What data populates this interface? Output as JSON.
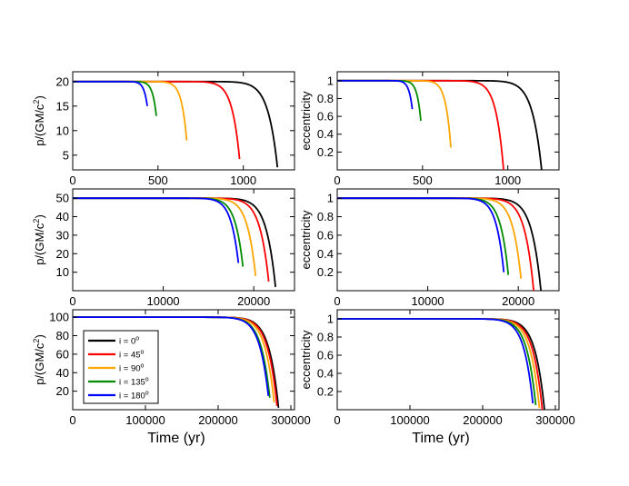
{
  "legend": {
    "placement": "inside-left of bottom-left panel",
    "entries": [
      {
        "label_prefix": "i = ",
        "label_value": "0",
        "label_sup": "o",
        "color": "#000000"
      },
      {
        "label_prefix": "i = ",
        "label_value": "45",
        "label_sup": "o",
        "color": "#ff0000"
      },
      {
        "label_prefix": "i = ",
        "label_value": "90",
        "label_sup": "o",
        "color": "#ffa500"
      },
      {
        "label_prefix": "i = ",
        "label_value": "135",
        "label_sup": "o",
        "color": "#008b00"
      },
      {
        "label_prefix": "i = ",
        "label_value": "180",
        "label_sup": "o",
        "color": "#0000ff"
      }
    ]
  },
  "chart_data": [
    {
      "type": "line",
      "panel": "row1-left",
      "ylabel_main": "p/(GM/c",
      "ylabel_sup": "2",
      "ylabel_end": ")",
      "xlabel": "",
      "xlim": [
        0,
        1300
      ],
      "ylim": [
        2,
        22
      ],
      "xticks": [
        0,
        500,
        1000
      ],
      "yticks": [
        5,
        10,
        15,
        20
      ],
      "series": [
        {
          "name": "i = 0°",
          "color": "#000000",
          "start": 20,
          "end_x": 1200,
          "end_y": 2.5
        },
        {
          "name": "i = 45°",
          "color": "#ff0000",
          "start": 20,
          "end_x": 978,
          "end_y": 4.2
        },
        {
          "name": "i = 90°",
          "color": "#ffa500",
          "start": 20,
          "end_x": 668,
          "end_y": 8
        },
        {
          "name": "i = 135°",
          "color": "#008b00",
          "start": 20,
          "end_x": 490,
          "end_y": 13
        },
        {
          "name": "i = 180°",
          "color": "#0000ff",
          "start": 20,
          "end_x": 437,
          "end_y": 15
        }
      ]
    },
    {
      "type": "line",
      "panel": "row1-right",
      "ylabel": "eccentricity",
      "xlabel": "",
      "xlim": [
        0,
        1300
      ],
      "ylim": [
        0,
        1.1
      ],
      "xticks": [
        0,
        500,
        1000
      ],
      "yticks": [
        0.2,
        0.4,
        0.6,
        0.8,
        1
      ],
      "ytick_labels": [
        "0.2",
        "0.4",
        "0.6",
        "0.8",
        "1"
      ],
      "series": [
        {
          "name": "i = 0°",
          "color": "#000000",
          "start": 1,
          "end_x": 1198,
          "end_y": 0
        },
        {
          "name": "i = 45°",
          "color": "#ff0000",
          "start": 1,
          "end_x": 975,
          "end_y": 0
        },
        {
          "name": "i = 90°",
          "color": "#ffa500",
          "start": 1,
          "end_x": 666,
          "end_y": 0.25
        },
        {
          "name": "i = 135°",
          "color": "#008b00",
          "start": 1,
          "end_x": 490,
          "end_y": 0.55
        },
        {
          "name": "i = 180°",
          "color": "#0000ff",
          "start": 1,
          "end_x": 440,
          "end_y": 0.68
        }
      ]
    },
    {
      "type": "line",
      "panel": "row2-left",
      "ylabel_main": "p/(GM/c",
      "ylabel_sup": "2",
      "ylabel_end": ")",
      "xlabel": "",
      "xlim": [
        0,
        24500
      ],
      "ylim": [
        0,
        55
      ],
      "xticks": [
        0,
        10000,
        20000
      ],
      "yticks": [
        10,
        20,
        30,
        40,
        50
      ],
      "series": [
        {
          "name": "i = 0°",
          "color": "#000000",
          "start": 50,
          "end_x": 22400,
          "end_y": 2
        },
        {
          "name": "i = 45°",
          "color": "#ff0000",
          "start": 50,
          "end_x": 21650,
          "end_y": 5
        },
        {
          "name": "i = 90°",
          "color": "#ffa500",
          "start": 50,
          "end_x": 20200,
          "end_y": 8
        },
        {
          "name": "i = 135°",
          "color": "#008b00",
          "start": 50,
          "end_x": 18800,
          "end_y": 13
        },
        {
          "name": "i = 180°",
          "color": "#0000ff",
          "start": 50,
          "end_x": 18300,
          "end_y": 15
        }
      ]
    },
    {
      "type": "line",
      "panel": "row2-right",
      "ylabel": "eccentricity",
      "xlabel": "",
      "xlim": [
        0,
        24500
      ],
      "ylim": [
        0,
        1.1
      ],
      "xticks": [
        0,
        10000,
        20000
      ],
      "yticks": [
        0.2,
        0.4,
        0.6,
        0.8,
        1
      ],
      "ytick_labels": [
        "0.2",
        "0.4",
        "0.6",
        "0.8",
        "1"
      ],
      "series": [
        {
          "name": "i = 0°",
          "color": "#000000",
          "start": 1,
          "end_x": 22500,
          "end_y": 0
        },
        {
          "name": "i = 45°",
          "color": "#ff0000",
          "start": 1,
          "end_x": 21700,
          "end_y": 0
        },
        {
          "name": "i = 90°",
          "color": "#ffa500",
          "start": 1,
          "end_x": 20300,
          "end_y": 0.13
        },
        {
          "name": "i = 135°",
          "color": "#008b00",
          "start": 1,
          "end_x": 18900,
          "end_y": 0.17
        },
        {
          "name": "i = 180°",
          "color": "#0000ff",
          "start": 1,
          "end_x": 18400,
          "end_y": 0.2
        }
      ]
    },
    {
      "type": "line",
      "panel": "row3-left",
      "ylabel_main": "p/(GM/c",
      "ylabel_sup": "2",
      "ylabel_end": ")",
      "xlabel": "Time (yr)",
      "xlim": [
        0,
        305000
      ],
      "ylim": [
        0,
        108
      ],
      "xticks": [
        0,
        100000,
        200000,
        300000
      ],
      "yticks": [
        20,
        40,
        60,
        80,
        100
      ],
      "series": [
        {
          "name": "i = 0°",
          "color": "#000000",
          "start": 100,
          "end_x": 283000,
          "end_y": 2
        },
        {
          "name": "i = 45°",
          "color": "#ff0000",
          "start": 100,
          "end_x": 281000,
          "end_y": 4
        },
        {
          "name": "i = 90°",
          "color": "#ffa500",
          "start": 100,
          "end_x": 277000,
          "end_y": 8
        },
        {
          "name": "i = 135°",
          "color": "#008b00",
          "start": 100,
          "end_x": 271000,
          "end_y": 13
        },
        {
          "name": "i = 180°",
          "color": "#0000ff",
          "start": 100,
          "end_x": 269000,
          "end_y": 15
        }
      ]
    },
    {
      "type": "line",
      "panel": "row3-right",
      "ylabel": "eccentricity",
      "xlabel": "Time (yr)",
      "xlim": [
        0,
        305000
      ],
      "ylim": [
        0,
        1.1
      ],
      "xticks": [
        0,
        100000,
        200000,
        300000
      ],
      "yticks": [
        0.2,
        0.4,
        0.6,
        0.8,
        1
      ],
      "ytick_labels": [
        "0.2",
        "0.4",
        "0.6",
        "0.8",
        "1"
      ],
      "series": [
        {
          "name": "i = 0°",
          "color": "#000000",
          "start": 1,
          "end_x": 285000,
          "end_y": 0
        },
        {
          "name": "i = 45°",
          "color": "#ff0000",
          "start": 1,
          "end_x": 282000,
          "end_y": 0
        },
        {
          "name": "i = 90°",
          "color": "#ffa500",
          "start": 1,
          "end_x": 278000,
          "end_y": 0.02
        },
        {
          "name": "i = 135°",
          "color": "#008b00",
          "start": 1,
          "end_x": 273000,
          "end_y": 0.05
        },
        {
          "name": "i = 180°",
          "color": "#0000ff",
          "start": 1,
          "end_x": 269000,
          "end_y": 0.07
        }
      ]
    }
  ]
}
